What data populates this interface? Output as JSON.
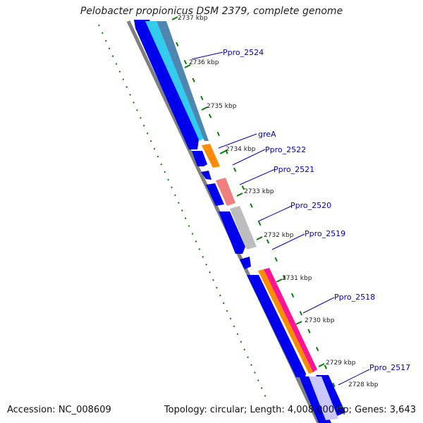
{
  "title": "Pelobacter propionicus DSM 2379, complete genome",
  "accession_label": "Accession: NC_008609",
  "summary_label": "Topology: circular; Length: 4,008,000 bp; Genes: 3,643",
  "colors": {
    "backbone": "#808080",
    "cds": "#0000ee",
    "label": "#0000cc",
    "dots": "#008000",
    "cyan": "#33ccee",
    "steel": "#4f86b0",
    "orange": "#ff8c00",
    "salmon": "#f08080",
    "grey": "#bdbdbd",
    "pink": "#ff1493"
  },
  "ticks": [
    "2737 kbp",
    "2736 kbp",
    "2735 kbp",
    "2734 kbp",
    "2733 kbp",
    "2732 kbp",
    "2731 kbp",
    "2730 kbp",
    "2729 kbp",
    "2728 kbp"
  ],
  "genes": [
    "Ppro_2524",
    "greA",
    "Ppro_2522",
    "Ppro_2521",
    "Ppro_2520",
    "Ppro_2519",
    "Ppro_2518",
    "Ppro_2517"
  ]
}
